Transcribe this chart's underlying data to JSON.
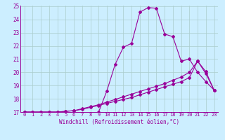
{
  "xlabel": "Windchill (Refroidissement éolien,°C)",
  "x": [
    0,
    1,
    2,
    3,
    4,
    5,
    6,
    7,
    8,
    9,
    10,
    11,
    12,
    13,
    14,
    15,
    16,
    17,
    18,
    19,
    20,
    21,
    22,
    23
  ],
  "line1": [
    17.0,
    16.85,
    16.85,
    16.9,
    16.9,
    16.9,
    16.9,
    16.9,
    16.8,
    17.0,
    18.6,
    20.6,
    21.9,
    22.2,
    24.55,
    24.9,
    24.85,
    22.9,
    22.7,
    20.85,
    21.0,
    20.0,
    19.3,
    18.65
  ],
  "line2": [
    17.0,
    17.0,
    17.0,
    17.0,
    17.0,
    17.05,
    17.1,
    17.2,
    17.35,
    17.5,
    17.65,
    17.8,
    17.95,
    18.1,
    18.3,
    18.5,
    18.7,
    18.9,
    19.1,
    19.3,
    19.6,
    20.85,
    19.9,
    18.65
  ],
  "line3": [
    17.0,
    17.0,
    17.0,
    17.0,
    17.0,
    17.05,
    17.1,
    17.25,
    17.4,
    17.55,
    17.75,
    17.95,
    18.15,
    18.35,
    18.55,
    18.75,
    18.95,
    19.15,
    19.4,
    19.65,
    20.0,
    20.85,
    20.05,
    18.65
  ],
  "line_color": "#990099",
  "bg_color": "#cceeff",
  "grid_color": "#aacccc",
  "ylim": [
    17,
    25
  ],
  "xlim": [
    -0.5,
    23.5
  ],
  "yticks": [
    17,
    18,
    19,
    20,
    21,
    22,
    23,
    24,
    25
  ],
  "xticks": [
    0,
    1,
    2,
    3,
    4,
    5,
    6,
    7,
    8,
    9,
    10,
    11,
    12,
    13,
    14,
    15,
    16,
    17,
    18,
    19,
    20,
    21,
    22,
    23
  ]
}
